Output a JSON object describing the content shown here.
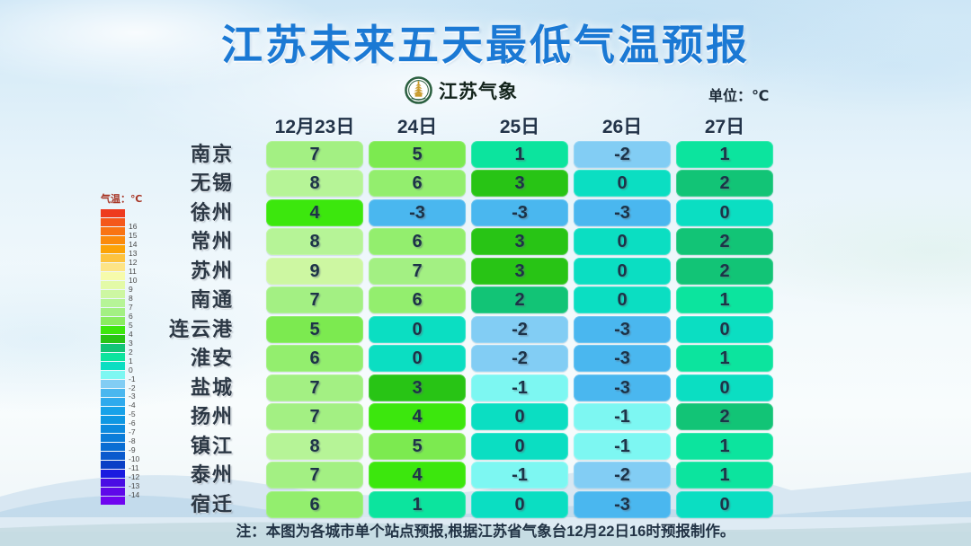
{
  "title": "江苏未来五天最低气温预报",
  "brand": {
    "logo_icon": "pagoda-emblem-icon",
    "name": "江苏气象"
  },
  "unit_label": "单位：℃",
  "note": "注：本图为各城市单个站点预报,根据江苏省气象台12月22日16时预报制作。",
  "legend": {
    "title": "气温：℃",
    "top_color": "#ee3a1f",
    "bottom_color": "#6f05f0",
    "entries": [
      {
        "label": "16",
        "color": "#f4581b"
      },
      {
        "label": "15",
        "color": "#f97413"
      },
      {
        "label": "14",
        "color": "#fb8b0c"
      },
      {
        "label": "13",
        "color": "#fca307"
      },
      {
        "label": "12",
        "color": "#fdc33e"
      },
      {
        "label": "11",
        "color": "#fde486"
      },
      {
        "label": "10",
        "color": "#f6fbab"
      },
      {
        "label": "9",
        "color": "#e3faa7"
      },
      {
        "label": "8",
        "color": "#cdf7a2"
      },
      {
        "label": "7",
        "color": "#b6f497"
      },
      {
        "label": "6",
        "color": "#a3f083"
      },
      {
        "label": "5",
        "color": "#8aec60"
      },
      {
        "label": "4",
        "color": "#3ce70d"
      },
      {
        "label": "3",
        "color": "#28c415"
      },
      {
        "label": "2",
        "color": "#12c476"
      },
      {
        "label": "1",
        "color": "#0ce49e"
      },
      {
        "label": "0",
        "color": "#0bdec2"
      },
      {
        "label": "-1",
        "color": "#7df7f2"
      },
      {
        "label": "-2",
        "color": "#82cdf4"
      },
      {
        "label": "-3",
        "color": "#4ab7ef"
      },
      {
        "label": "-4",
        "color": "#2eaaed"
      },
      {
        "label": "-5",
        "color": "#17a2e9"
      },
      {
        "label": "-6",
        "color": "#0f98e3"
      },
      {
        "label": "-7",
        "color": "#0d8bdf"
      },
      {
        "label": "-8",
        "color": "#0b7dd9"
      },
      {
        "label": "-9",
        "color": "#0a6ed3"
      },
      {
        "label": "-10",
        "color": "#0a5acd"
      },
      {
        "label": "-11",
        "color": "#0a3fc6"
      },
      {
        "label": "-12",
        "color": "#1a1ae0"
      },
      {
        "label": "-13",
        "color": "#4a0ce4"
      },
      {
        "label": "-14",
        "color": "#5f08e9"
      }
    ]
  },
  "value_colors": {
    "9": "#cdf7a2",
    "8": "#b6f497",
    "7": "#a3f083",
    "6": "#93ee6e",
    "5": "#7cea50",
    "4": "#3ce70d",
    "3": "#28c415",
    "2": "#12c476",
    "1": "#0ce49e",
    "0": "#0bdec2",
    "-1": "#7df7f2",
    "-2": "#82cdf4",
    "-3": "#4ab7ef"
  },
  "chart_data": {
    "type": "heatmap",
    "title": "江苏未来五天最低气温预报",
    "unit": "℃",
    "columns": [
      "12月23日",
      "24日",
      "25日",
      "26日",
      "27日"
    ],
    "rows": [
      "南京",
      "无锡",
      "徐州",
      "常州",
      "苏州",
      "南通",
      "连云港",
      "淮安",
      "盐城",
      "扬州",
      "镇江",
      "泰州",
      "宿迁"
    ],
    "values": [
      [
        7,
        5,
        1,
        -2,
        1
      ],
      [
        8,
        6,
        3,
        0,
        2
      ],
      [
        4,
        -3,
        -3,
        -3,
        0
      ],
      [
        8,
        6,
        3,
        0,
        2
      ],
      [
        9,
        7,
        3,
        0,
        2
      ],
      [
        7,
        6,
        2,
        0,
        1
      ],
      [
        5,
        0,
        -2,
        -3,
        0
      ],
      [
        6,
        0,
        -2,
        -3,
        1
      ],
      [
        7,
        3,
        -1,
        -3,
        0
      ],
      [
        7,
        4,
        0,
        -1,
        2
      ],
      [
        8,
        5,
        0,
        -1,
        1
      ],
      [
        7,
        4,
        -1,
        -2,
        1
      ],
      [
        6,
        1,
        0,
        -3,
        0
      ]
    ],
    "legend_title": "气温：℃",
    "legend_range": [
      16,
      -14
    ],
    "accent_color": "#1b79d4"
  }
}
